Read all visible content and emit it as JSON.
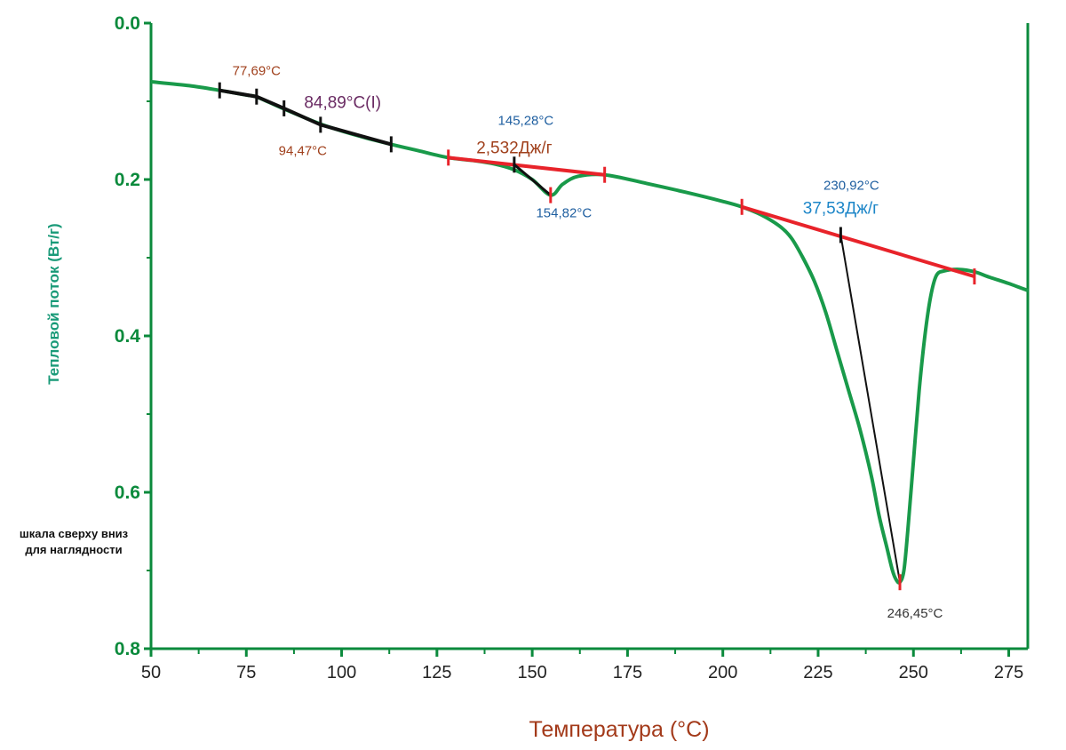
{
  "chart_data": {
    "type": "line",
    "xlabel": "Температура (°C)",
    "ylabel": "Тепловой поток (Вт/г)",
    "xlim": [
      50,
      280
    ],
    "ylim": [
      0.0,
      0.8
    ],
    "y_inverted": true,
    "x_ticks": [
      {
        "value": 50,
        "label": "50"
      },
      {
        "value": 75,
        "label": "75"
      },
      {
        "value": 100,
        "label": "100"
      },
      {
        "value": 125,
        "label": "125"
      },
      {
        "value": 150,
        "label": "150"
      },
      {
        "value": 175,
        "label": "175"
      },
      {
        "value": 200,
        "label": "200"
      },
      {
        "value": 225,
        "label": "225"
      },
      {
        "value": 250,
        "label": "250"
      },
      {
        "value": 275,
        "label": "275"
      }
    ],
    "y_ticks": [
      {
        "value": 0.0,
        "label": "0.0"
      },
      {
        "value": 0.2,
        "label": "0.2"
      },
      {
        "value": 0.4,
        "label": "0.4"
      },
      {
        "value": 0.6,
        "label": "0.6"
      },
      {
        "value": 0.8,
        "label": "0.8"
      }
    ],
    "curve_color": "#199a4a",
    "series": [
      {
        "name": "DSC",
        "x": [
          50,
          60,
          68,
          75,
          78,
          85,
          95,
          105,
          113,
          120,
          128,
          135,
          140,
          145,
          150,
          154.82,
          158,
          162,
          169,
          180,
          190,
          200,
          205,
          210,
          215,
          218,
          221,
          224,
          227,
          230,
          233,
          236,
          239,
          241,
          243,
          244.5,
          245.5,
          246.45,
          247.5,
          248.5,
          250,
          251.5,
          253,
          254.5,
          256,
          258,
          262,
          266,
          270,
          275,
          280
        ],
        "y": [
          0.075,
          0.08,
          0.086,
          0.092,
          0.095,
          0.11,
          0.13,
          0.145,
          0.155,
          0.163,
          0.172,
          0.176,
          0.18,
          0.187,
          0.2,
          0.22,
          0.206,
          0.196,
          0.194,
          0.205,
          0.216,
          0.228,
          0.235,
          0.245,
          0.26,
          0.275,
          0.3,
          0.33,
          0.37,
          0.42,
          0.47,
          0.52,
          0.58,
          0.63,
          0.67,
          0.7,
          0.712,
          0.715,
          0.7,
          0.65,
          0.56,
          0.47,
          0.4,
          0.35,
          0.323,
          0.317,
          0.315,
          0.318,
          0.325,
          0.333,
          0.342
        ]
      }
    ],
    "glass_transition": {
      "segment": [
        {
          "x": 68,
          "y": 0.086
        },
        {
          "x": 77.69,
          "y": 0.094
        },
        {
          "x": 84.89,
          "y": 0.109
        },
        {
          "x": 94.47,
          "y": 0.13
        },
        {
          "x": 113,
          "y": 0.155
        }
      ]
    },
    "baselines": [
      {
        "x1": 128,
        "y1": 0.172,
        "x2": 169,
        "y2": 0.194
      },
      {
        "x1": 205,
        "y1": 0.235,
        "x2": 266,
        "y2": 0.324
      }
    ],
    "integration_lines": [
      {
        "x1": 145.28,
        "y1": 0.181,
        "x2": 154.82,
        "y2": 0.22
      },
      {
        "x1": 230.92,
        "y1": 0.271,
        "x2": 246.45,
        "y2": 0.715
      }
    ],
    "annotations": [
      {
        "text": "77,69°C",
        "x": 77.69,
        "y": 0.094,
        "color": "#a0401c",
        "size": "small"
      },
      {
        "text": "84,89°C(I)",
        "x": 84.89,
        "y": 0.109,
        "color": "#6a2b63",
        "size": "big"
      },
      {
        "text": "94,47°C",
        "x": 94.47,
        "y": 0.13,
        "color": "#a0401c",
        "size": "small"
      },
      {
        "text": "145,28°C",
        "x": 145.28,
        "y": 0.181,
        "color": "#1f5fa0",
        "size": "small"
      },
      {
        "text": "2,532Дж/г",
        "x": 145.28,
        "y": 0.181,
        "color": "#a0401c",
        "size": "big"
      },
      {
        "text": "154,82°C",
        "x": 154.82,
        "y": 0.22,
        "color": "#1f5fa0",
        "size": "small"
      },
      {
        "text": "230,92°C",
        "x": 230.92,
        "y": 0.271,
        "color": "#1f5fa0",
        "size": "small"
      },
      {
        "text": "37,53Дж/г",
        "x": 230.92,
        "y": 0.271,
        "color": "#1d86c8",
        "size": "big"
      },
      {
        "text": "246,45°C",
        "x": 246.45,
        "y": 0.715,
        "color": "#333333",
        "size": "small"
      }
    ]
  },
  "note": "шкала сверху вниз для наглядности"
}
